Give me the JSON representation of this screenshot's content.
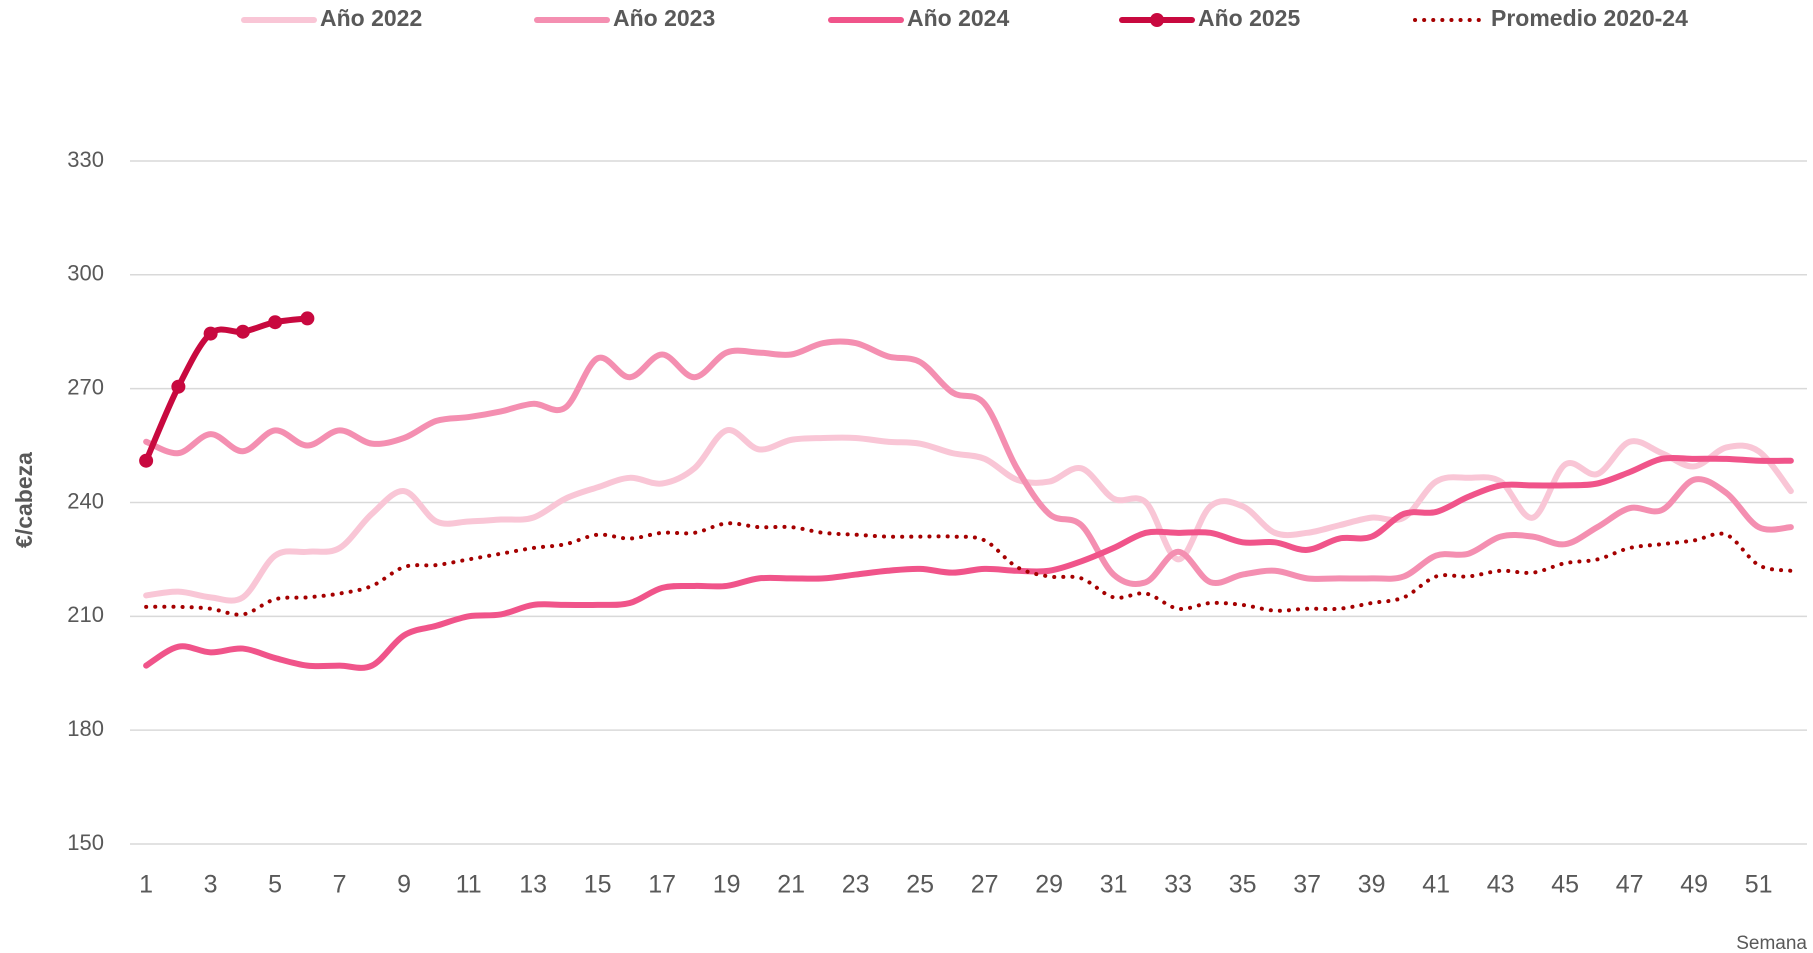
{
  "chart_data": {
    "type": "line",
    "y_label": "€/cabeza",
    "x_label": "Semana",
    "x": [
      1,
      2,
      3,
      4,
      5,
      6,
      7,
      8,
      9,
      10,
      11,
      12,
      13,
      14,
      15,
      16,
      17,
      18,
      19,
      20,
      21,
      22,
      23,
      24,
      25,
      26,
      27,
      28,
      29,
      30,
      31,
      32,
      33,
      34,
      35,
      36,
      37,
      38,
      39,
      40,
      41,
      42,
      43,
      44,
      45,
      46,
      47,
      48,
      49,
      50,
      51,
      52
    ],
    "xlim": [
      0.5,
      52.5
    ],
    "xticks": [
      1,
      3,
      5,
      7,
      9,
      11,
      13,
      15,
      17,
      19,
      21,
      23,
      25,
      27,
      29,
      31,
      33,
      35,
      37,
      39,
      41,
      43,
      45,
      47,
      49,
      51
    ],
    "ylim": [
      150,
      340
    ],
    "yticks": [
      150,
      180,
      210,
      240,
      270,
      300,
      330
    ],
    "grid": true,
    "legend": "top",
    "smooth": true,
    "series": [
      {
        "name": "Año 2022",
        "color": "#f9c6d6",
        "values": [
          215.5,
          216.5,
          215,
          215,
          226,
          227,
          228,
          237,
          243,
          235,
          235,
          235.5,
          236,
          241,
          244,
          246.5,
          245,
          249,
          259,
          254,
          256.5,
          257,
          257,
          256,
          255.5,
          253,
          251.5,
          246,
          245.5,
          249,
          241,
          240,
          225,
          239,
          239,
          232,
          232,
          234,
          236,
          236,
          245.5,
          246.5,
          245.5,
          236,
          250,
          247.5,
          256,
          253,
          249.5,
          254.5,
          253.5,
          243
        ]
      },
      {
        "name": "Año 2023",
        "color": "#f48fb1",
        "values": [
          256,
          253,
          258,
          253.5,
          259,
          255,
          259,
          255.5,
          257,
          261.5,
          262.5,
          264,
          266,
          265,
          278,
          273,
          279,
          273,
          279.5,
          279.5,
          279,
          282,
          282,
          278.5,
          277,
          269,
          266,
          249,
          237,
          234,
          221,
          219,
          227,
          219,
          221,
          222,
          220,
          220,
          220,
          220.5,
          226,
          226.5,
          231,
          231,
          229,
          233.5,
          238.5,
          238,
          246,
          242.5,
          233.5,
          233.5
        ]
      },
      {
        "name": "Año 2024",
        "color": "#f0548a",
        "values": [
          197,
          202,
          200.5,
          201.5,
          199,
          197,
          197,
          197,
          205,
          207.5,
          210,
          210.5,
          213,
          213,
          213,
          213.5,
          217.5,
          218,
          218,
          220,
          220,
          220,
          221,
          222,
          222.5,
          221.5,
          222.5,
          222,
          222,
          224.5,
          228,
          232,
          232,
          232,
          229.5,
          229.5,
          227.5,
          230.5,
          231,
          237,
          237.5,
          241.5,
          244.5,
          244.5,
          244.5,
          245,
          248,
          251.5,
          251.5,
          251.5,
          251,
          251
        ]
      },
      {
        "name": "Año 2025",
        "color": "#c8093f",
        "markers": true,
        "values": [
          251,
          270.5,
          284.5,
          285,
          287.5,
          288.5,
          null,
          null,
          null,
          null,
          null,
          null,
          null,
          null,
          null,
          null,
          null,
          null,
          null,
          null,
          null,
          null,
          null,
          null,
          null,
          null,
          null,
          null,
          null,
          null,
          null,
          null,
          null,
          null,
          null,
          null,
          null,
          null,
          null,
          null,
          null,
          null,
          null,
          null,
          null,
          null,
          null,
          null,
          null,
          null,
          null,
          null
        ]
      },
      {
        "name": "Promedio 2020-24",
        "color": "#a50000",
        "dash": "dot",
        "values": [
          212.5,
          212.5,
          212,
          210.5,
          214.5,
          215,
          216,
          218,
          223,
          223.5,
          225,
          226.5,
          228,
          229,
          231.5,
          230.5,
          232,
          232,
          234.5,
          233.5,
          233.5,
          232,
          231.5,
          231,
          231,
          231,
          230,
          223,
          220.5,
          220,
          215,
          216,
          212,
          213.5,
          213,
          211.5,
          212,
          212,
          213.5,
          215,
          220.5,
          220.5,
          222,
          221.5,
          224,
          225,
          228,
          229,
          230,
          231.5,
          223.5,
          222
        ]
      }
    ]
  }
}
